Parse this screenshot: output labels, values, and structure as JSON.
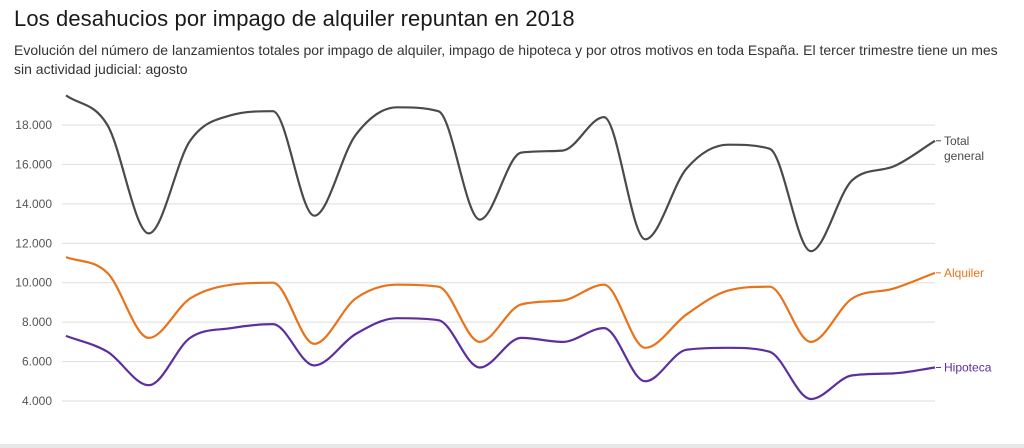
{
  "header": {
    "title": "Los desahucios por impago de alquiler repuntan en 2018",
    "subtitle": "Evolución del número de lanzamientos totales por impago de alquiler, impago de hipoteca y por otros motivos en toda España. El tercer trimestre tiene un mes sin actividad judicial: agosto"
  },
  "chart_data": {
    "type": "line",
    "title": "Los desahucios por impago de alquiler repuntan en 2018",
    "subtitle": "Evolución del número de lanzamientos totales por impago de alquiler, impago de hipoteca y por otros motivos en toda España. El tercer trimestre tiene un mes sin actividad judicial: agosto",
    "xlabel": "",
    "ylabel": "",
    "ylim": [
      3000,
      19500
    ],
    "y_ticks": [
      4000,
      6000,
      8000,
      10000,
      12000,
      14000,
      16000,
      18000
    ],
    "y_tick_labels": [
      "4.000",
      "6.000",
      "8.000",
      "10.000",
      "12.000",
      "14.000",
      "16.000",
      "18.000"
    ],
    "grid": true,
    "legend": "labels at line ends (right)",
    "series": [
      {
        "name": "Total general",
        "label_lines": [
          "Total",
          "general"
        ],
        "color": "#4a4a4a",
        "values": [
          19500,
          18000,
          12500,
          17200,
          18500,
          18700,
          13400,
          17500,
          18900,
          18700,
          13200,
          16600,
          16700,
          18400,
          12200,
          15800,
          17000,
          16800,
          11600,
          15200,
          15900,
          17200
        ]
      },
      {
        "name": "Alquiler",
        "label_lines": [
          "Alquiler"
        ],
        "color": "#e8731a",
        "values": [
          11300,
          10500,
          7200,
          9200,
          9900,
          10000,
          6900,
          9200,
          9900,
          9800,
          7000,
          8900,
          9100,
          9900,
          6700,
          8400,
          9600,
          9800,
          7000,
          9200,
          9700,
          10500
        ]
      },
      {
        "name": "Hipoteca",
        "label_lines": [
          "Hipoteca"
        ],
        "color": "#5e2e9e",
        "values": [
          7300,
          6500,
          4800,
          7200,
          7700,
          7900,
          5800,
          7400,
          8200,
          8100,
          5700,
          7200,
          7000,
          7700,
          5000,
          6600,
          6700,
          6500,
          4100,
          5300,
          5400,
          5700
        ]
      }
    ]
  }
}
